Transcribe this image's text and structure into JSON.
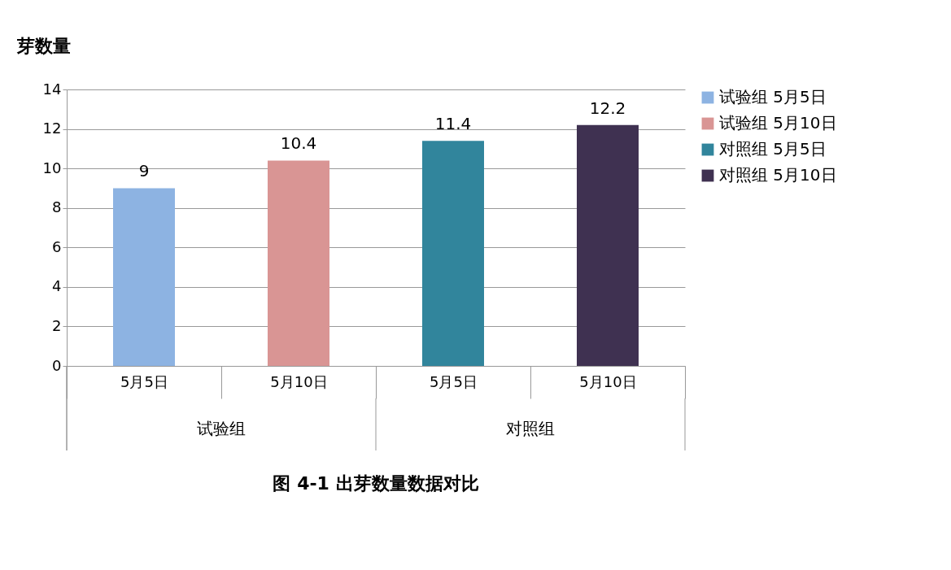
{
  "chart_data": {
    "type": "bar",
    "title": "图 4-1  出芽数量数据对比",
    "ylabel": "芽数量",
    "categories": [
      "5月5日",
      "5月10日",
      "5月5日",
      "5月10日"
    ],
    "series": [
      {
        "name": "试验组 5月5日",
        "color": "#8db3e2",
        "values": [
          9,
          null,
          null,
          null
        ]
      },
      {
        "name": "试验组 5月10日",
        "color": "#d99594",
        "values": [
          null,
          10.4,
          null,
          null
        ]
      },
      {
        "name": "对照组 5月5日",
        "color": "#31859c",
        "values": [
          null,
          null,
          11.4,
          null
        ]
      },
      {
        "name": "对照组 5月10日",
        "color": "#3f3151",
        "values": [
          null,
          null,
          null,
          12.2
        ]
      }
    ],
    "annotations": [
      "试验组",
      "对照组"
    ],
    "ylim": [
      0,
      14
    ],
    "yticks": [
      0,
      2,
      4,
      6,
      8,
      10,
      12,
      14
    ],
    "grid": "y",
    "legend": "right",
    "data_labels": true
  }
}
